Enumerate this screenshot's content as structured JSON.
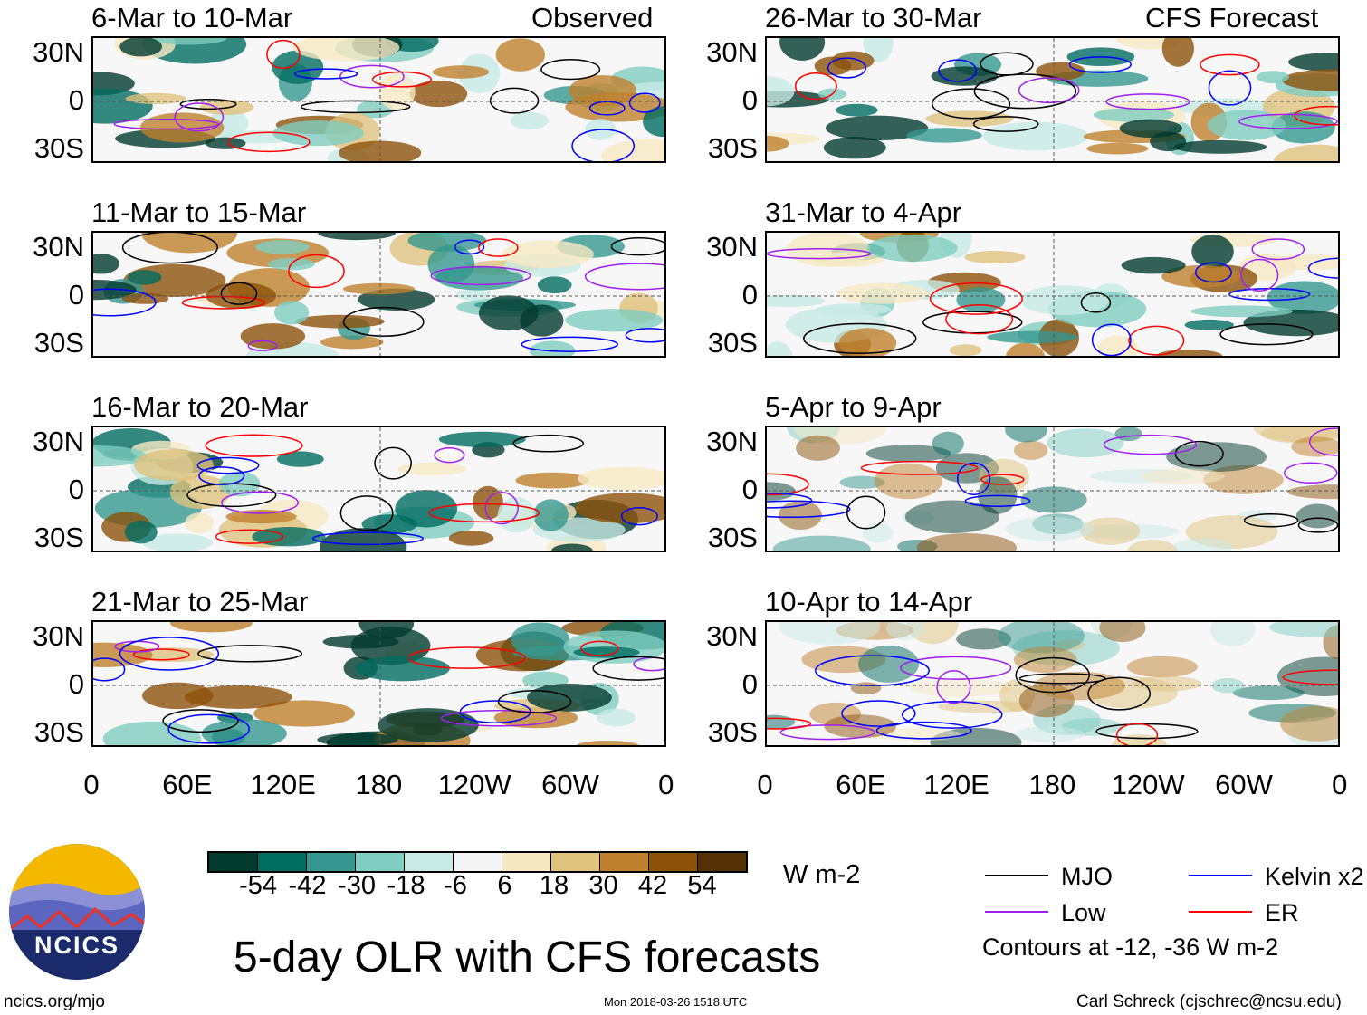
{
  "header": {
    "left_label": "Observed",
    "right_label": "CFS Forecast"
  },
  "panels": {
    "observed": [
      "6-Mar to 10-Mar",
      "11-Mar to 15-Mar",
      "16-Mar to 20-Mar",
      "21-Mar to 25-Mar"
    ],
    "forecast": [
      "26-Mar to 30-Mar",
      "31-Mar to 4-Apr",
      "5-Apr to 9-Apr",
      "10-Apr to 14-Apr"
    ]
  },
  "lat_labels": [
    "30N",
    "0",
    "30S"
  ],
  "lon_labels": [
    "0",
    "60E",
    "120E",
    "180",
    "120W",
    "60W",
    "0"
  ],
  "colorbar": {
    "colors": [
      "#01392e",
      "#016c60",
      "#35978f",
      "#80cdc1",
      "#c7eae5",
      "#f5f5f5",
      "#f6e8c3",
      "#dfc27d",
      "#bf812d",
      "#8c510a",
      "#543005"
    ],
    "labels": [
      "-54",
      "-42",
      "-30",
      "-18",
      "-6",
      "6",
      "18",
      "30",
      "42",
      "54"
    ],
    "units": "W m-2"
  },
  "legend": {
    "items": [
      {
        "label": "MJO",
        "color": "#000000"
      },
      {
        "label": "Kelvin x2",
        "color": "#0000ff"
      },
      {
        "label": "Low",
        "color": "#a020f0"
      },
      {
        "label": "ER",
        "color": "#ff0000"
      }
    ],
    "note": "Contours at -12, -36 W m-2"
  },
  "logo": {
    "text": "NCICS"
  },
  "title": "5-day OLR with CFS forecasts",
  "footer": {
    "url": "ncics.org/mjo",
    "timestamp": "Mon 2018-03-26 1518 UTC",
    "author": "Carl Schreck (cjschrec@ncsu.edu)"
  }
}
